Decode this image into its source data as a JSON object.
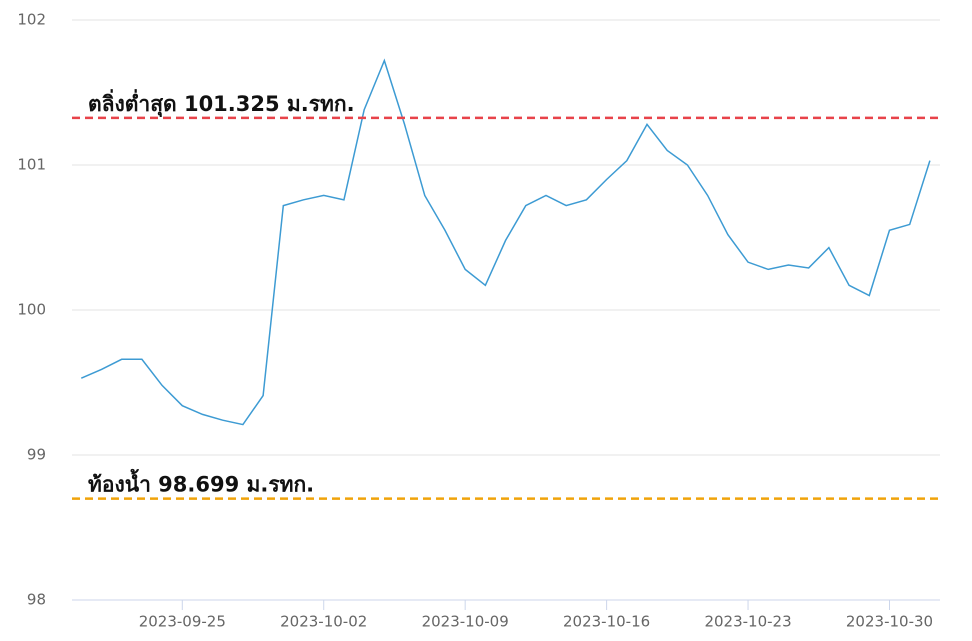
{
  "chart_data": {
    "type": "line",
    "x": [
      "2023-09-20",
      "2023-09-21",
      "2023-09-22",
      "2023-09-23",
      "2023-09-24",
      "2023-09-25",
      "2023-09-26",
      "2023-09-27",
      "2023-09-28",
      "2023-09-29",
      "2023-09-30",
      "2023-10-01",
      "2023-10-02",
      "2023-10-03",
      "2023-10-04",
      "2023-10-05",
      "2023-10-06",
      "2023-10-07",
      "2023-10-08",
      "2023-10-09",
      "2023-10-10",
      "2023-10-11",
      "2023-10-12",
      "2023-10-13",
      "2023-10-14",
      "2023-10-15",
      "2023-10-16",
      "2023-10-17",
      "2023-10-18",
      "2023-10-19",
      "2023-10-20",
      "2023-10-21",
      "2023-10-22",
      "2023-10-23",
      "2023-10-24",
      "2023-10-25",
      "2023-10-26",
      "2023-10-27",
      "2023-10-28",
      "2023-10-29",
      "2023-10-30",
      "2023-10-31",
      "2023-11-01"
    ],
    "series": [
      {
        "color": "#3d9bd3",
        "values": [
          99.53,
          99.59,
          99.66,
          99.66,
          99.48,
          99.34,
          99.28,
          99.24,
          99.21,
          99.41,
          100.72,
          100.76,
          100.79,
          100.76,
          101.38,
          101.72,
          101.28,
          100.79,
          100.55,
          100.28,
          100.17,
          100.48,
          100.72,
          100.79,
          100.72,
          100.76,
          100.9,
          101.03,
          101.28,
          101.1,
          101.0,
          100.79,
          100.52,
          100.33,
          100.28,
          100.31,
          100.29,
          100.43,
          100.17,
          100.1,
          100.55,
          100.59,
          101.03
        ]
      }
    ],
    "xlim": [
      "2023-09-19T13:00",
      "2023-11-01T12:00"
    ],
    "xticks": [
      "2023-09-25",
      "2023-10-02",
      "2023-10-09",
      "2023-10-16",
      "2023-10-23",
      "2023-10-30"
    ],
    "ylim": [
      98,
      102
    ],
    "yticks": [
      98,
      99,
      100,
      101,
      102
    ],
    "grid": true,
    "reference_lines": [
      {
        "value": 101.325,
        "label": "ตลิ่งต่ำสุด 101.325 ม.รทก.",
        "color": "#e8434a"
      },
      {
        "value": 98.699,
        "label": "ท้องน้ำ 98.699 ม.รทก.",
        "color": "#f0a30a"
      }
    ]
  }
}
